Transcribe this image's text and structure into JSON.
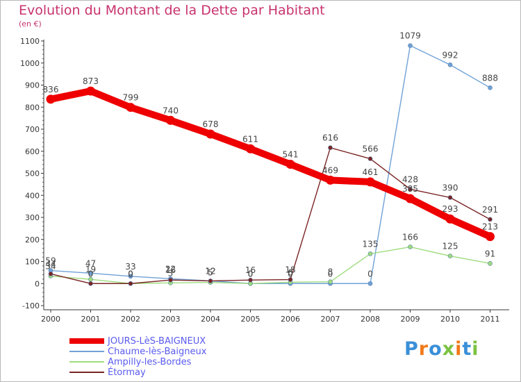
{
  "header": {
    "title": "Evolution du Montant de la Dette par Habitant",
    "subtitle": "(en €)"
  },
  "chart_data": {
    "type": "line",
    "title": "Evolution du Montant de la Dette par Habitant",
    "subtitle": "(en €)",
    "xlabel": "",
    "ylabel": "",
    "categories": [
      "2000",
      "2001",
      "2002",
      "2003",
      "2004",
      "2005",
      "2006",
      "2007",
      "2008",
      "2009",
      "2010",
      "2011"
    ],
    "ylim": [
      -100,
      1100
    ],
    "yticks": [
      -100,
      0,
      100,
      200,
      300,
      400,
      500,
      600,
      700,
      800,
      900,
      1000,
      1100
    ],
    "grid": false,
    "legend_position": "bottom-left",
    "series": [
      {
        "name": "JOURS-LèS-BAIGNEUX",
        "color": "#ee0000",
        "values": [
          836,
          873,
          799,
          740,
          678,
          611,
          541,
          469,
          461,
          385,
          293,
          213
        ]
      },
      {
        "name": "Chaume-lès-Baigneux",
        "color": "#6fa1d7",
        "values": [
          59,
          47,
          33,
          22,
          12,
          0,
          0,
          0,
          0,
          1079,
          992,
          888
        ]
      },
      {
        "name": "Ampilly-les-Bordes",
        "color": "#9fdc7f",
        "values": [
          34,
          19,
          0,
          3,
          5,
          0,
          6,
          8,
          135,
          166,
          125,
          91
        ]
      },
      {
        "name": "Étormay",
        "color": "#7a2424",
        "values": [
          44,
          0,
          0,
          16,
          12,
          16,
          18,
          616,
          566,
          428,
          390,
          291
        ]
      }
    ]
  },
  "legend": {
    "items": [
      {
        "label": "JOURS-LèS-BAIGNEUX",
        "color": "#ee0000"
      },
      {
        "label": "Chaume-lès-Baigneux",
        "color": "#6fa1d7"
      },
      {
        "label": "Ampilly-les-Bordes",
        "color": "#9fdc7f"
      },
      {
        "label": "Étormay",
        "color": "#7a2424"
      }
    ]
  },
  "logo": {
    "text": "Proxiti",
    "letters": [
      {
        "ch": "P",
        "color": "#3a8fd8"
      },
      {
        "ch": "r",
        "color": "#f07a1a"
      },
      {
        "ch": "o",
        "color": "#3a8fd8"
      },
      {
        "ch": "x",
        "color": "#7cc242"
      },
      {
        "ch": "i",
        "color": "#f07a1a"
      },
      {
        "ch": "t",
        "color": "#3a8fd8"
      },
      {
        "ch": "i",
        "color": "#7cc242"
      }
    ]
  }
}
